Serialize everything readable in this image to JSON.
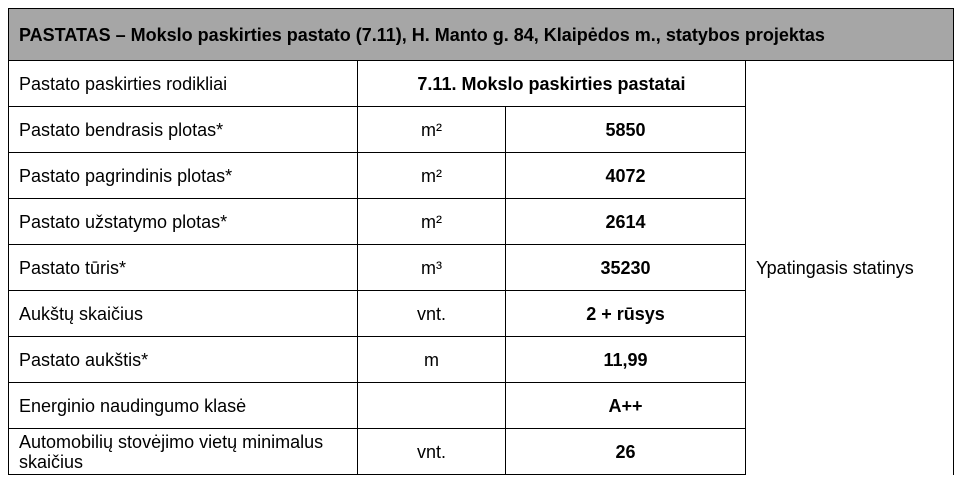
{
  "header": {
    "title": "PASTATAS – Mokslo paskirties pastato (7.11), H. Manto g. 84, Klaipėdos m., statybos projektas"
  },
  "table": {
    "side_note": "Ypatingasis statinys",
    "rows": [
      {
        "label": "Pastato paskirties rodikliai",
        "value": "7.11. Mokslo paskirties pastatai"
      },
      {
        "label": "Pastato bendrasis plotas*",
        "unit": "m²",
        "value": "5850"
      },
      {
        "label": "Pastato pagrindinis plotas*",
        "unit": "m²",
        "value": "4072"
      },
      {
        "label": "Pastato užstatymo plotas*",
        "unit": "m²",
        "value": "2614"
      },
      {
        "label": "Pastato tūris*",
        "unit": "m³",
        "value": "35230"
      },
      {
        "label": "Aukštų skaičius",
        "unit": "vnt.",
        "value": "2 + rūsys"
      },
      {
        "label": "Pastato aukštis*",
        "unit": "m",
        "value": "11,99"
      },
      {
        "label": "Energinio naudingumo klasė",
        "value": "A++"
      },
      {
        "label": "Automobilių stovėjimo vietų minimalus skaičius",
        "unit": "vnt.",
        "value": "26"
      }
    ]
  }
}
